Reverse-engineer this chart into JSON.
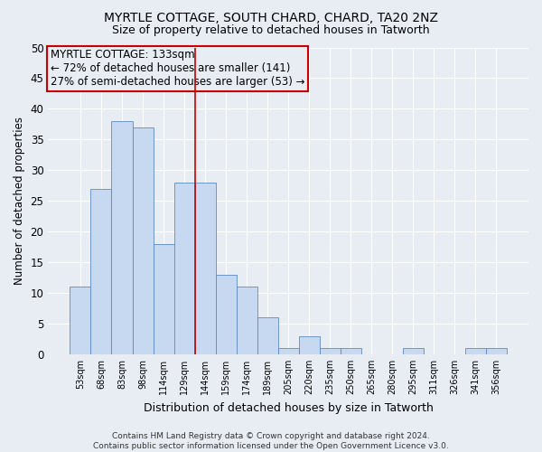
{
  "title1": "MYRTLE COTTAGE, SOUTH CHARD, CHARD, TA20 2NZ",
  "title2": "Size of property relative to detached houses in Tatworth",
  "xlabel": "Distribution of detached houses by size in Tatworth",
  "ylabel": "Number of detached properties",
  "categories": [
    "53sqm",
    "68sqm",
    "83sqm",
    "98sqm",
    "114sqm",
    "129sqm",
    "144sqm",
    "159sqm",
    "174sqm",
    "189sqm",
    "205sqm",
    "220sqm",
    "235sqm",
    "250sqm",
    "265sqm",
    "280sqm",
    "295sqm",
    "311sqm",
    "326sqm",
    "341sqm",
    "356sqm"
  ],
  "values": [
    11,
    27,
    38,
    37,
    18,
    28,
    28,
    13,
    11,
    6,
    1,
    3,
    1,
    1,
    0,
    0,
    1,
    0,
    0,
    1,
    1
  ],
  "bar_color": "#c6d9f0",
  "bar_edge_color": "#5b8ac6",
  "vline_x": 5.5,
  "vline_color": "#cc0000",
  "annotation_text": "MYRTLE COTTAGE: 133sqm\n← 72% of detached houses are smaller (141)\n27% of semi-detached houses are larger (53) →",
  "annotation_box_color": "#cc0000",
  "ylim": [
    0,
    50
  ],
  "yticks": [
    0,
    5,
    10,
    15,
    20,
    25,
    30,
    35,
    40,
    45,
    50
  ],
  "background_color": "#e8edf4",
  "grid_color": "#ffffff",
  "footer": "Contains HM Land Registry data © Crown copyright and database right 2024.\nContains public sector information licensed under the Open Government Licence v3.0."
}
